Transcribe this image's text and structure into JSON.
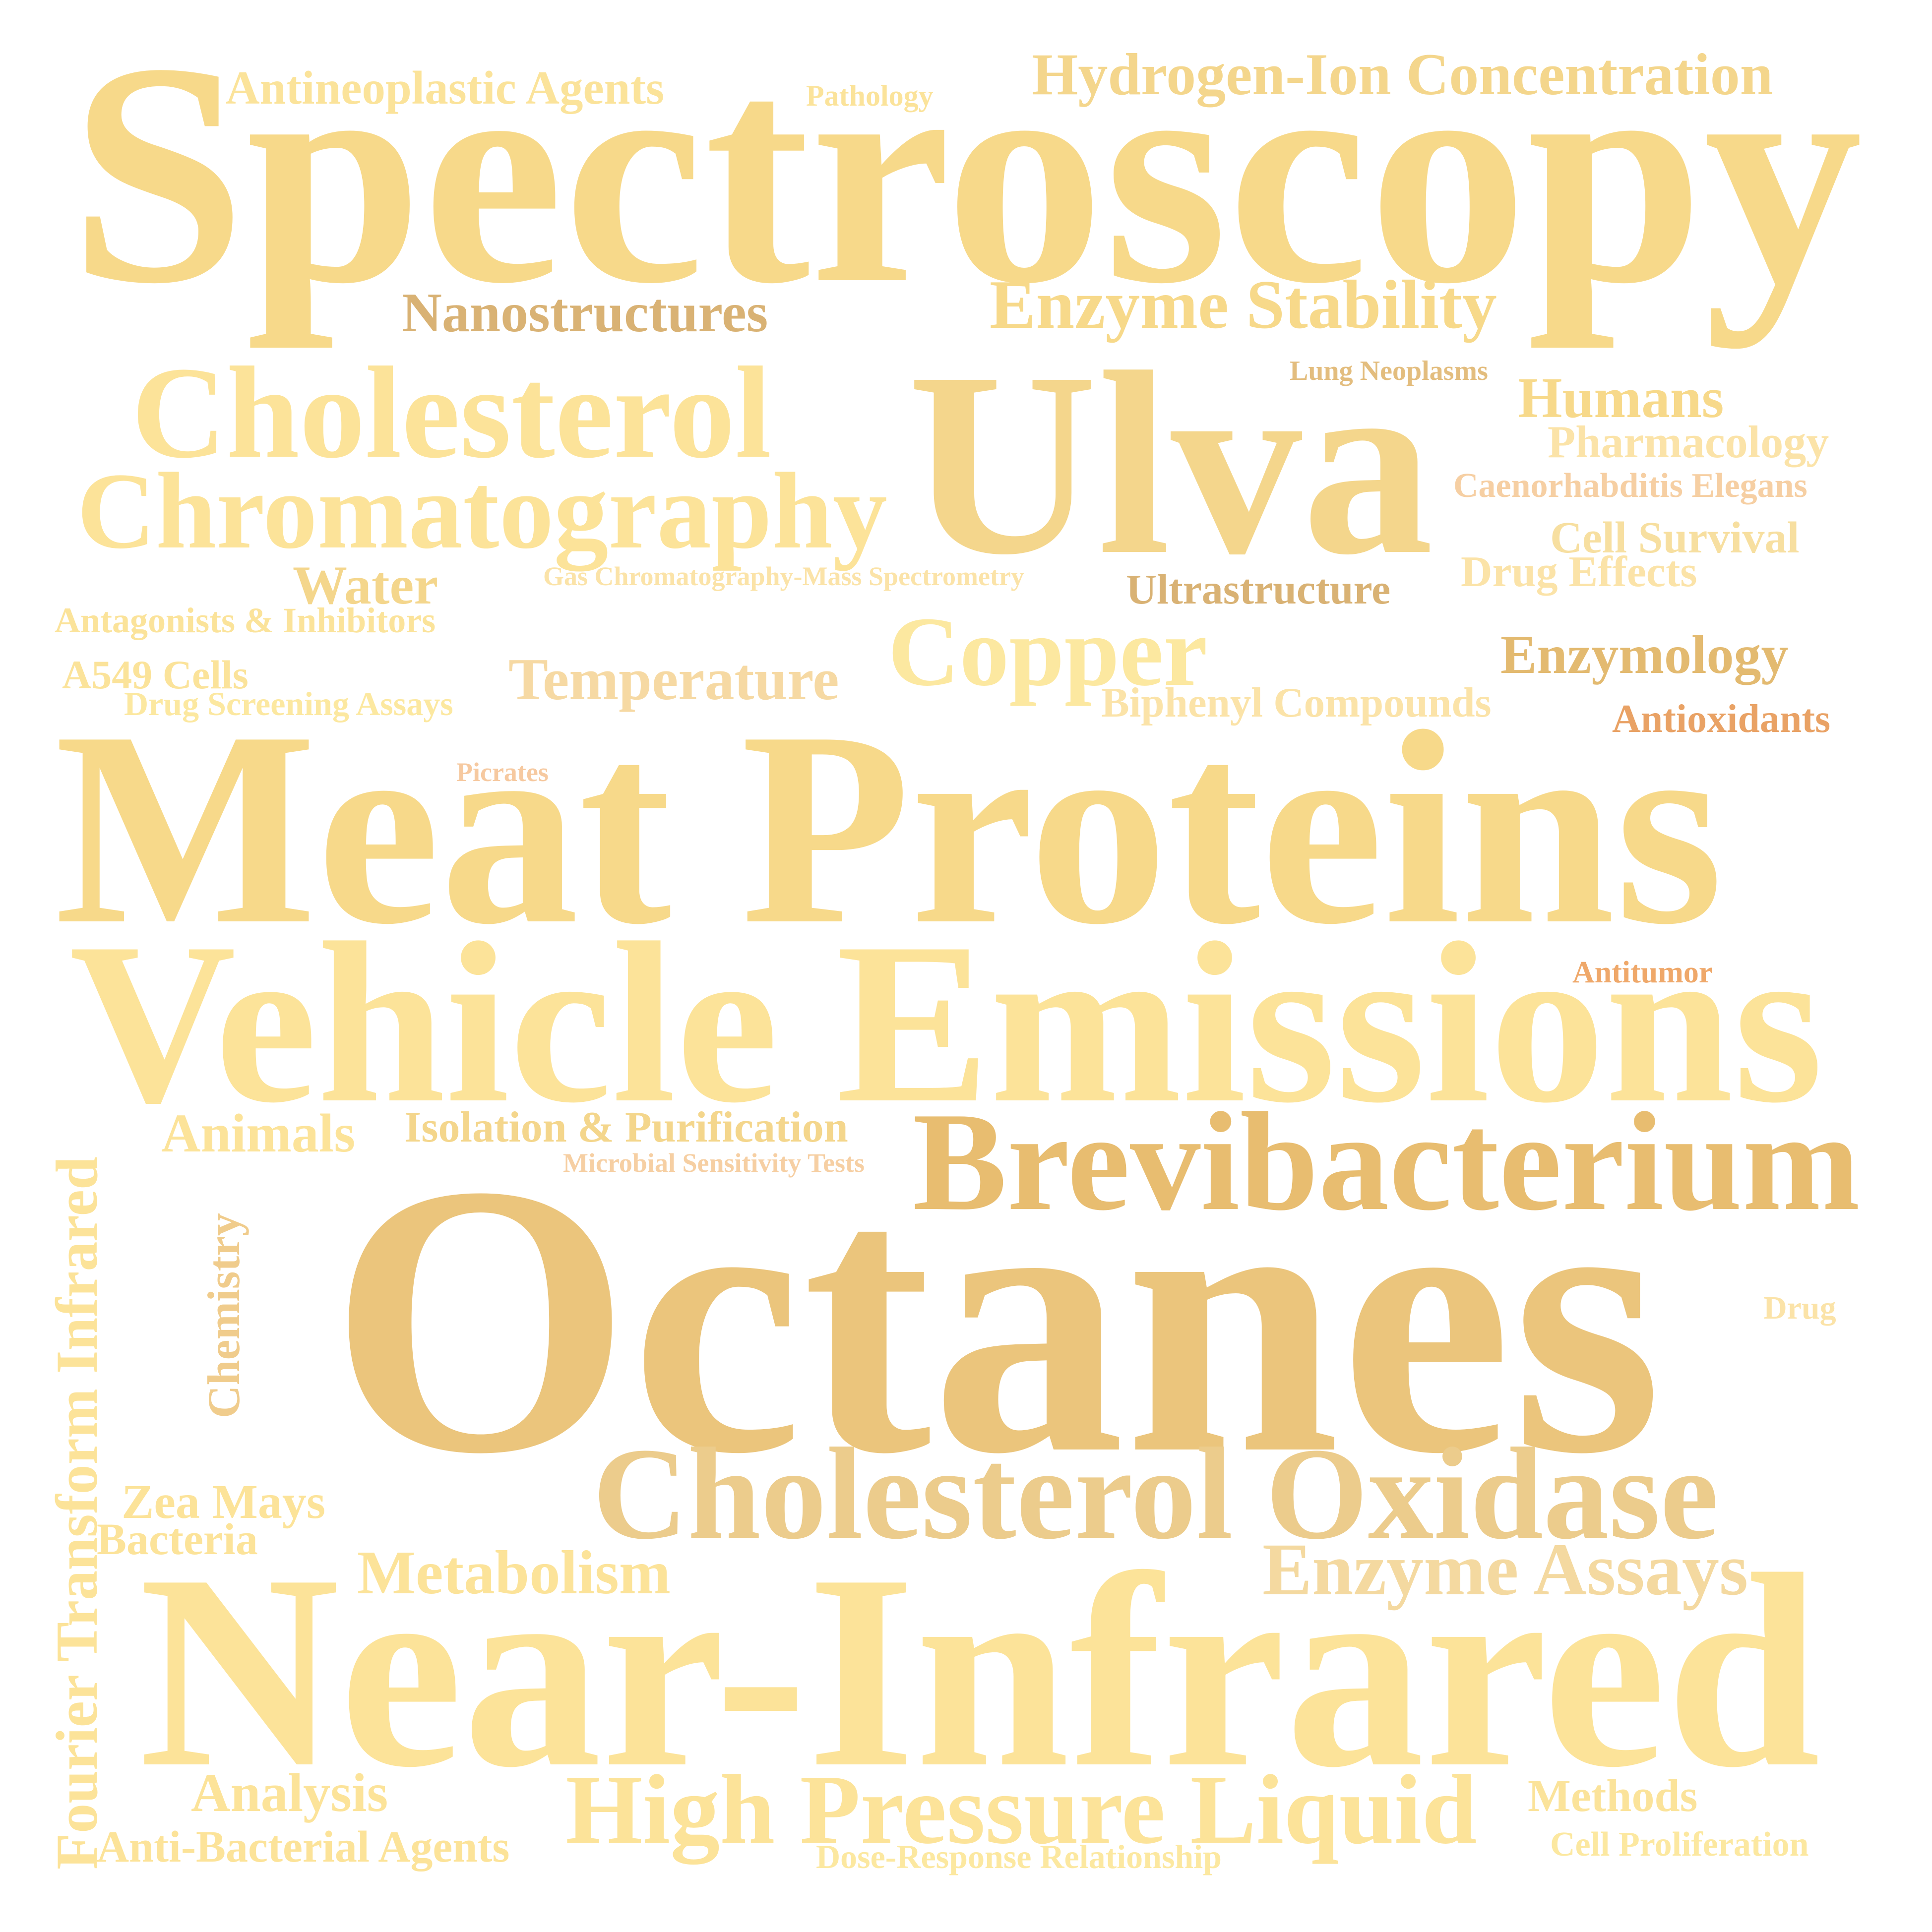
{
  "words": [
    {
      "text": "Spectroscopy",
      "color": "#F7D98A"
    },
    {
      "text": "Antineoplastic Agents",
      "color": "#FBE39A"
    },
    {
      "text": "Pathology",
      "color": "#FBE39A"
    },
    {
      "text": "Hydrogen-Ion Concentration",
      "color": "#F4D68C"
    },
    {
      "text": "Nanostructures",
      "color": "#D9B274"
    },
    {
      "text": "Enzyme Stability",
      "color": "#F7D98A"
    },
    {
      "text": "Cholesterol",
      "color": "#FCE399"
    },
    {
      "text": "Ulva",
      "color": "#F4D68C"
    },
    {
      "text": "Lung Neoplasms",
      "color": "#E3BD7E"
    },
    {
      "text": "Humans",
      "color": "#F7D98A"
    },
    {
      "text": "Pharmacology",
      "color": "#FBE3A8"
    },
    {
      "text": "Chromatography",
      "color": "#FCE399"
    },
    {
      "text": "Caenorhabditis Elegans",
      "color": "#F6CFA3"
    },
    {
      "text": "Cell Survival",
      "color": "#F7DFA0"
    },
    {
      "text": "Water",
      "color": "#F4D68C"
    },
    {
      "text": "Gas Chromatography-Mass Spectrometry",
      "color": "#FBE3A8"
    },
    {
      "text": "Ultrastructure",
      "color": "#D9B274"
    },
    {
      "text": "Drug Effects",
      "color": "#FBE3A8"
    },
    {
      "text": "Antagonists & Inhibitors",
      "color": "#FBE39A"
    },
    {
      "text": "Copper",
      "color": "#FCE8A0"
    },
    {
      "text": "Enzymology",
      "color": "#E3BA70"
    },
    {
      "text": "A549 Cells",
      "color": "#FBE39A"
    },
    {
      "text": "Temperature",
      "color": "#F6D9A3"
    },
    {
      "text": "Drug Screening Assays",
      "color": "#FCE8A0"
    },
    {
      "text": "Biphenyl Compounds",
      "color": "#FBE3A8"
    },
    {
      "text": "Antioxidants",
      "color": "#E9A265"
    },
    {
      "text": "Picrates",
      "color": "#F6C9A0"
    },
    {
      "text": "Meat Proteins",
      "color": "#F7D98A"
    },
    {
      "text": "Antitumor",
      "color": "#EFA86A"
    },
    {
      "text": "Vehicle Emissions",
      "color": "#FCE399"
    },
    {
      "text": "Animals",
      "color": "#FCE399"
    },
    {
      "text": "Isolation & Purification",
      "color": "#F4D68C"
    },
    {
      "text": "Microbial Sensitivity Tests",
      "color": "#F6CFA3"
    },
    {
      "text": "Brevibacterium",
      "color": "#E8BD70"
    },
    {
      "text": "Fourier Transform Infrared",
      "color": "#FCE399"
    },
    {
      "text": "Chemistry",
      "color": "#F0CC8C"
    },
    {
      "text": "Octanes",
      "color": "#EBC57C"
    },
    {
      "text": "Drug",
      "color": "#FBE3A8"
    },
    {
      "text": "Cholesterol Oxidase",
      "color": "#ECCC8C"
    },
    {
      "text": "Zea Mays",
      "color": "#FCE399"
    },
    {
      "text": "Bacteria",
      "color": "#FCE399"
    },
    {
      "text": "Enzyme Assays",
      "color": "#F4D9A0"
    },
    {
      "text": "Metabolism",
      "color": "#FCE399"
    },
    {
      "text": "Near-Infrared",
      "color": "#FCE399"
    },
    {
      "text": "Analysis",
      "color": "#FCE399"
    },
    {
      "text": "High Pressure Liquid",
      "color": "#FCE399"
    },
    {
      "text": "Methods",
      "color": "#FBE39A"
    },
    {
      "text": "Anti-Bacterial Agents",
      "color": "#FCE399"
    },
    {
      "text": "Dose-Response Relationship",
      "color": "#FCE8A0"
    },
    {
      "text": "Cell Proliferation",
      "color": "#FCE8A0"
    }
  ]
}
